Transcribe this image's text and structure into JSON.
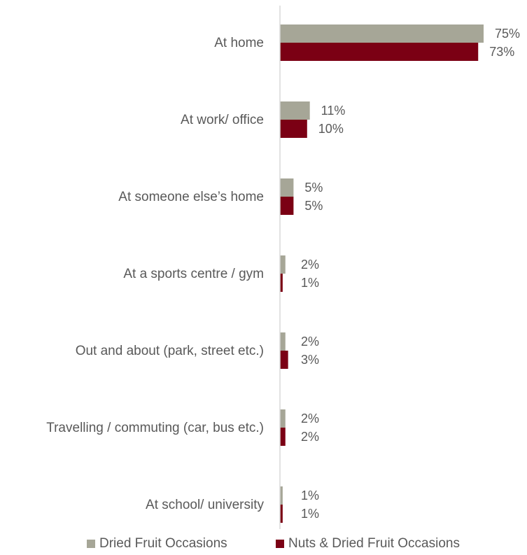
{
  "chart_data": {
    "type": "bar",
    "orientation": "horizontal",
    "categories": [
      "At home",
      "At work/ office",
      "At someone else’s home",
      "At a sports centre / gym",
      "Out and about (park, street etc.)",
      "Travelling / commuting (car, bus etc.)",
      "At school/ university"
    ],
    "series": [
      {
        "name": "Dried Fruit Occasions",
        "color": "#A6A697",
        "values": [
          75,
          11,
          5,
          2,
          2,
          2,
          1
        ],
        "labels": [
          "75%",
          "11%",
          "5%",
          "2%",
          "2%",
          "2%",
          "1%"
        ]
      },
      {
        "name": "Nuts & Dried Fruit Occasions",
        "color": "#7B0014",
        "values": [
          73,
          10,
          5,
          1,
          3,
          2,
          1
        ],
        "labels": [
          "73%",
          "10%",
          "5%",
          "1%",
          "3%",
          "2%",
          "1%"
        ]
      }
    ],
    "xlim": [
      0,
      80
    ],
    "axis_color": "#D9D9D9",
    "grid": false,
    "legend_position": "bottom"
  }
}
